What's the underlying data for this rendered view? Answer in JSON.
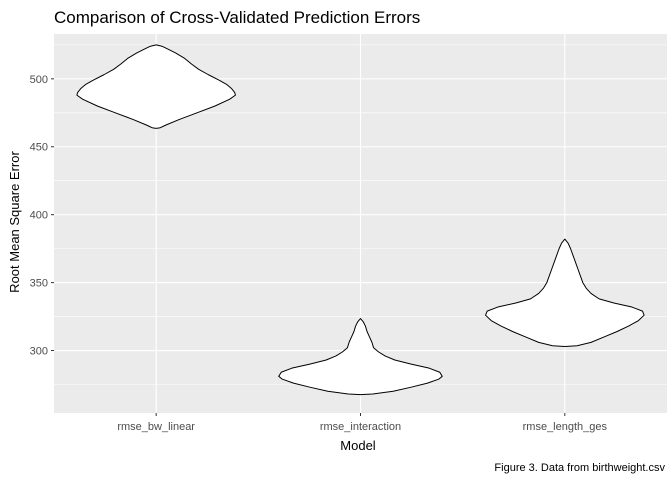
{
  "chart_data": {
    "type": "violin",
    "title": "Comparison of Cross-Validated Prediction Errors",
    "xlabel": "Model",
    "ylabel": "Root Mean Square Error",
    "caption": "Figure 3. Data from birthweight.csv",
    "categories": [
      "rmse_bw_linear",
      "rmse_interaction",
      "rmse_length_ges"
    ],
    "yticks": [
      300,
      350,
      400,
      450,
      500
    ],
    "ylim": [
      254,
      533
    ],
    "grid": true,
    "colors": {
      "panel": "#ebebeb",
      "grid": "#ffffff",
      "violin_fill": "#ffffff",
      "violin_outline": "#000000"
    },
    "series": [
      {
        "category": "rmse_bw_linear",
        "profile": [
          [
            463.5,
            0.0
          ],
          [
            464,
            0.05
          ],
          [
            466,
            0.12
          ],
          [
            470,
            0.28
          ],
          [
            475,
            0.5
          ],
          [
            480,
            0.72
          ],
          [
            485,
            0.9
          ],
          [
            488,
            0.97
          ],
          [
            490,
            0.96
          ],
          [
            493,
            0.92
          ],
          [
            496,
            0.86
          ],
          [
            499,
            0.77
          ],
          [
            503,
            0.64
          ],
          [
            507,
            0.52
          ],
          [
            511,
            0.43
          ],
          [
            515,
            0.35
          ],
          [
            519,
            0.24
          ],
          [
            522,
            0.14
          ],
          [
            524,
            0.07
          ],
          [
            525,
            0.0
          ]
        ]
      },
      {
        "category": "rmse_interaction",
        "profile": [
          [
            267.5,
            0.0
          ],
          [
            268,
            0.15
          ],
          [
            270,
            0.4
          ],
          [
            273,
            0.62
          ],
          [
            276,
            0.82
          ],
          [
            279,
            0.96
          ],
          [
            281,
            1.0
          ],
          [
            284,
            0.97
          ],
          [
            287,
            0.84
          ],
          [
            290,
            0.62
          ],
          [
            293,
            0.42
          ],
          [
            296,
            0.3
          ],
          [
            299,
            0.22
          ],
          [
            302,
            0.16
          ],
          [
            306,
            0.14
          ],
          [
            310,
            0.11
          ],
          [
            314,
            0.08
          ],
          [
            318,
            0.06
          ],
          [
            321,
            0.035
          ],
          [
            323.5,
            0.0
          ]
        ]
      },
      {
        "category": "rmse_length_ges",
        "profile": [
          [
            303,
            0.0
          ],
          [
            303.5,
            0.15
          ],
          [
            306,
            0.32
          ],
          [
            310,
            0.48
          ],
          [
            314,
            0.64
          ],
          [
            318,
            0.78
          ],
          [
            322,
            0.9
          ],
          [
            326,
            0.97
          ],
          [
            329,
            0.95
          ],
          [
            332,
            0.82
          ],
          [
            335,
            0.6
          ],
          [
            338,
            0.42
          ],
          [
            342,
            0.32
          ],
          [
            346,
            0.26
          ],
          [
            350,
            0.22
          ],
          [
            355,
            0.19
          ],
          [
            360,
            0.16
          ],
          [
            365,
            0.13
          ],
          [
            370,
            0.1
          ],
          [
            375,
            0.07
          ],
          [
            379,
            0.04
          ],
          [
            382,
            0.0
          ]
        ]
      }
    ]
  }
}
